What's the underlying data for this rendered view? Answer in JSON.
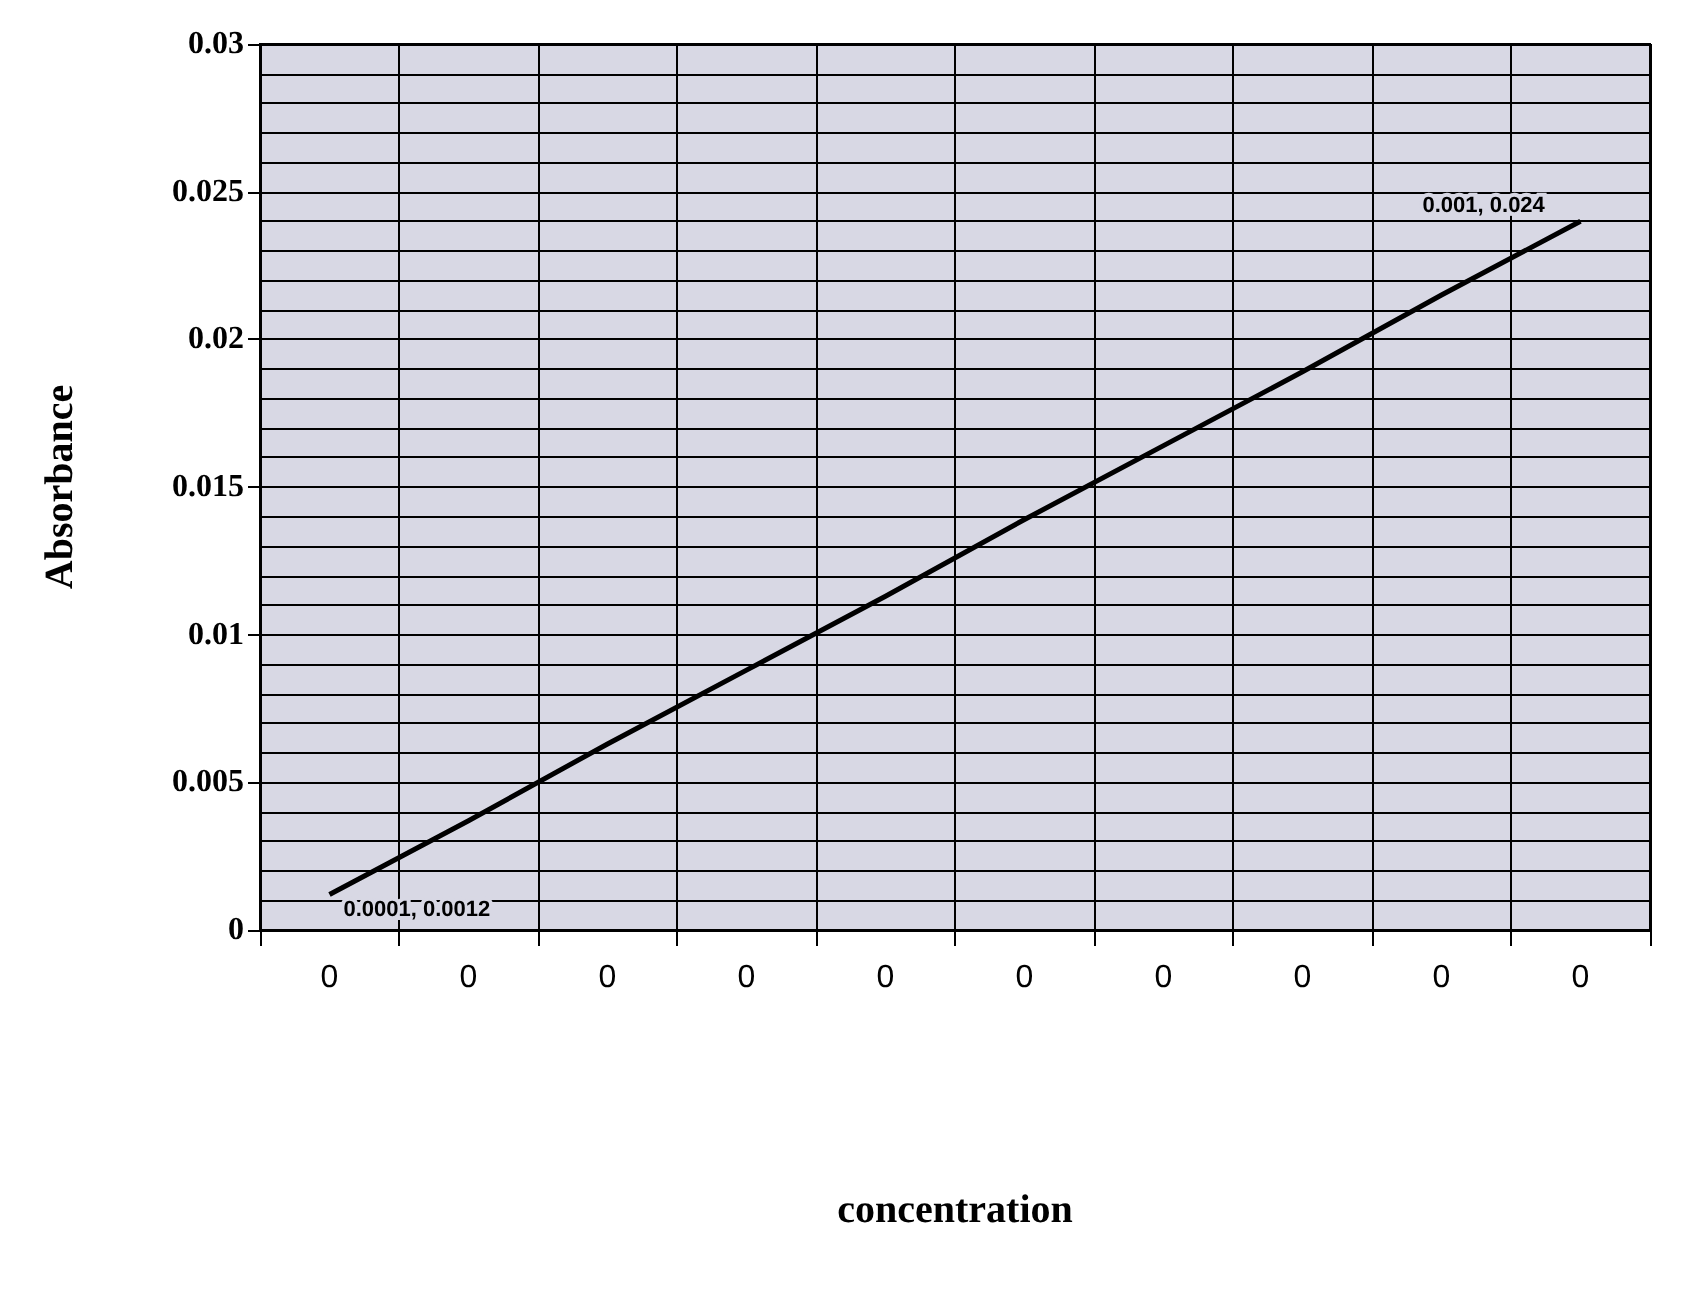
{
  "chart_data": {
    "type": "line",
    "xlabel": "concentration",
    "ylabel": "Absorbance",
    "categories": [
      "0",
      "0",
      "0",
      "0",
      "0",
      "0",
      "0",
      "0",
      "0",
      "0"
    ],
    "series": [
      {
        "color": "#000000",
        "values": [
          0.0012,
          0.0037,
          0.0063,
          0.0088,
          0.0113,
          0.0139,
          0.0164,
          0.0189,
          0.0215,
          0.024
        ],
        "value_labels": [
          "0.0001, 0.0012",
          null,
          null,
          null,
          null,
          null,
          null,
          null,
          null,
          "0.001, 0.024"
        ]
      }
    ],
    "ylim": [
      0,
      0.03
    ],
    "yticks": [
      0,
      0.005,
      0.01,
      0.015,
      0.02,
      0.025,
      0.03
    ],
    "grid": true,
    "marker": "none",
    "line_style": "solid"
  }
}
